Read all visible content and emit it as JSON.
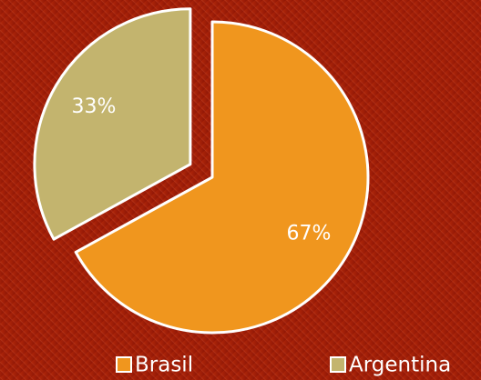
{
  "chart_data": {
    "type": "pie",
    "categories": [
      "Brasil",
      "Argentina"
    ],
    "values": [
      67,
      33
    ],
    "value_labels": [
      "67%",
      "33%"
    ],
    "colors": [
      "#f0961e",
      "#c3b46e"
    ],
    "legend": "bottom"
  }
}
